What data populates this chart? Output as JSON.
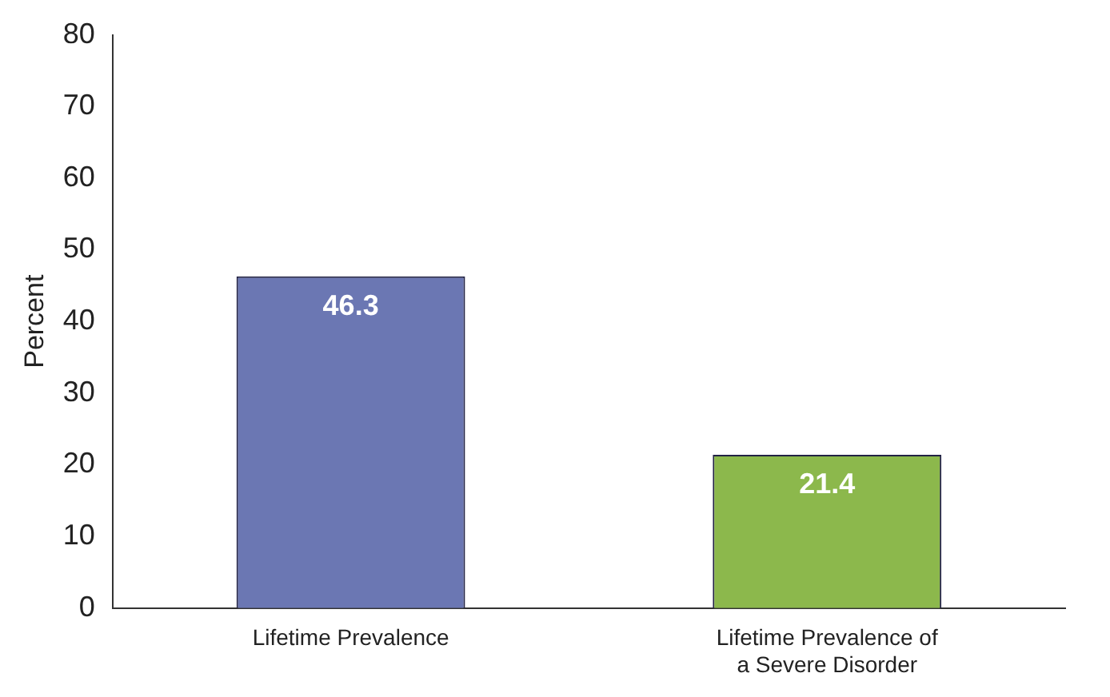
{
  "chart_data": {
    "type": "bar",
    "ylabel": "Percent",
    "categories": [
      "Lifetime Prevalence",
      "Lifetime Prevalence of a Severe Disorder"
    ],
    "values": [
      46.3,
      21.4
    ],
    "colors": [
      "#6b77b3",
      "#8cb84c"
    ],
    "ylim": [
      0,
      80
    ],
    "yticks": [
      0,
      10,
      20,
      30,
      40,
      50,
      60,
      70,
      80
    ],
    "grid": false,
    "data_labels": true
  }
}
